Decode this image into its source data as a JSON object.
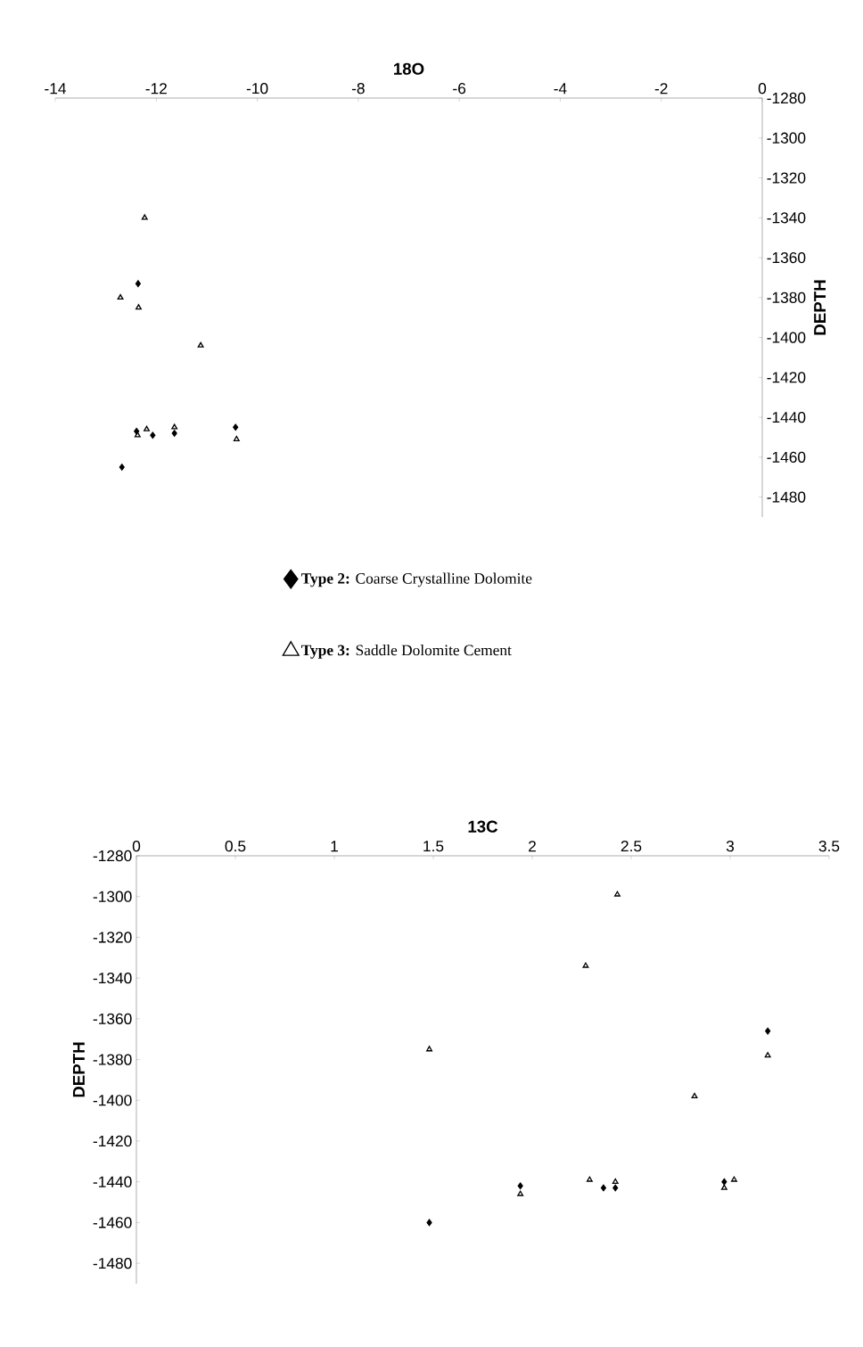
{
  "chart_data": [
    {
      "type": "scatter",
      "xlabel": "18O",
      "ylabel": "DEPTH",
      "xlim": [
        -14,
        0
      ],
      "ylim": [
        -1490,
        -1280
      ],
      "xticks": [
        -14,
        -12,
        -10,
        -8,
        -6,
        -4,
        -2,
        0
      ],
      "yticks": [
        -1480,
        -1460,
        -1440,
        -1420,
        -1400,
        -1380,
        -1360,
        -1340,
        -1320,
        -1300,
        -1280
      ],
      "grid": false,
      "legend": "bottom",
      "series": [
        {
          "name": "**Type 2:** Coarse Crystalline Dolomite",
          "color": "#000000",
          "marker": "diamond",
          "x": [
            -12.36,
            -12.39,
            -12.07,
            -11.64,
            -10.43,
            -12.68
          ],
          "values": [
            -1373,
            -1447,
            -1449,
            -1448,
            -1445,
            -1465
          ]
        },
        {
          "name": "**Type 3:** Saddle Dolomite Cement",
          "color": "#000000",
          "marker": "triangle",
          "x": [
            -12.23,
            -12.71,
            -12.35,
            -11.12,
            -12.37,
            -12.19,
            -11.64,
            -10.41
          ],
          "values": [
            -1340,
            -1380,
            -1385,
            -1404,
            -1449,
            -1446,
            -1445,
            -1451
          ]
        }
      ]
    },
    {
      "type": "scatter",
      "xlabel": "13C",
      "ylabel": "DEPTH",
      "xlim": [
        0,
        3.5
      ],
      "ylim": [
        -1490,
        -1280
      ],
      "xticks": [
        0,
        0.5,
        1,
        1.5,
        2,
        2.5,
        3,
        3.5
      ],
      "yticks": [
        -1480,
        -1460,
        -1440,
        -1420,
        -1400,
        -1380,
        -1360,
        -1340,
        -1320,
        -1300,
        -1280
      ],
      "grid": false,
      "series": [
        {
          "color": "#000000",
          "marker": "diamond",
          "x": [
            3.19,
            1.94,
            2.36,
            2.42,
            2.97,
            1.48
          ],
          "values": [
            -1366,
            -1442,
            -1443,
            -1443,
            -1440,
            -1460
          ]
        },
        {
          "color": "#000000",
          "marker": "triangle",
          "x": [
            2.43,
            2.27,
            1.48,
            3.19,
            2.82,
            1.94,
            2.29,
            2.42,
            2.97,
            3.02
          ],
          "values": [
            -1299,
            -1334,
            -1375,
            -1378,
            -1398,
            -1446,
            -1439,
            -1440,
            -1443,
            -1439
          ]
        }
      ]
    }
  ]
}
